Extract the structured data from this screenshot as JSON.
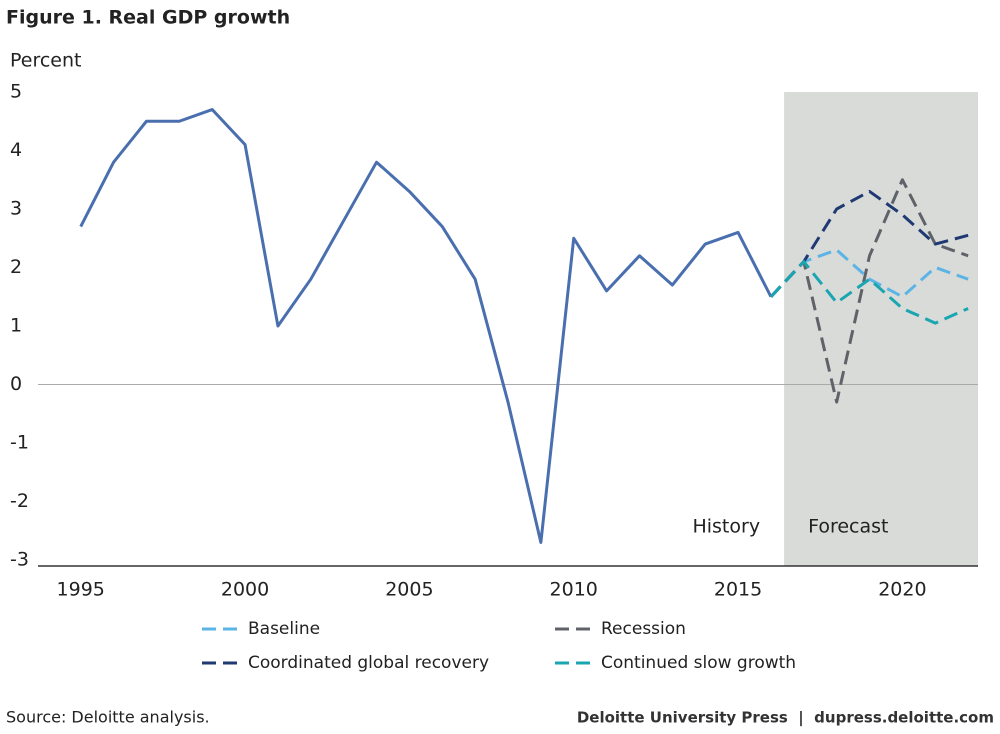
{
  "chart_data": {
    "type": "line",
    "title": "Figure 1. Real GDP growth",
    "y_label": "Percent",
    "source": "Source: Deloitte analysis.",
    "credit": "Deloitte University Press  |  dupress.deloitte.com",
    "annotations": [
      "History",
      "Forecast"
    ],
    "forecast_span": [
      2016.4,
      2022.3
    ],
    "xlim": [
      1993.7,
      2022.3
    ],
    "xticks": [
      1995,
      2000,
      2005,
      2010,
      2015,
      2020
    ],
    "ylim": [
      -3,
      5
    ],
    "yticks": [
      5,
      4,
      3,
      2,
      1,
      0,
      -1,
      -2,
      -3
    ],
    "series": [
      {
        "color": "#4a6fae",
        "dashed": false,
        "x": [
          1995,
          1996,
          1997,
          1998,
          1999,
          2000,
          2001,
          2002,
          2003,
          2004,
          2005,
          2006,
          2007,
          2008,
          2009,
          2010,
          2011,
          2012,
          2013,
          2014,
          2015,
          2016
        ],
        "values": [
          2.7,
          3.8,
          4.5,
          4.5,
          4.7,
          4.1,
          1.0,
          1.8,
          2.8,
          3.8,
          3.3,
          2.7,
          1.8,
          -0.3,
          -2.7,
          2.5,
          1.6,
          2.2,
          1.7,
          2.4,
          2.6,
          1.5
        ]
      },
      {
        "name": "Baseline",
        "color": "#5bb4e5",
        "dashed": true,
        "x": [
          2016,
          2017,
          2018,
          2019,
          2020,
          2021,
          2022
        ],
        "values": [
          1.5,
          2.1,
          2.3,
          1.8,
          1.5,
          2.0,
          1.8
        ]
      },
      {
        "name": "Recession",
        "color": "#5f6369",
        "dashed": true,
        "x": [
          2016,
          2017,
          2018,
          2019,
          2020,
          2021,
          2022
        ],
        "values": [
          1.5,
          2.1,
          -0.3,
          2.2,
          3.5,
          2.4,
          2.2
        ]
      },
      {
        "name": "Coordinated global recovery",
        "color": "#1f3a73",
        "dashed": true,
        "x": [
          2016,
          2017,
          2018,
          2019,
          2020,
          2021,
          2022
        ],
        "values": [
          1.5,
          2.1,
          3.0,
          3.3,
          2.9,
          2.4,
          2.55
        ]
      },
      {
        "name": "Continued slow growth",
        "color": "#1aa6b0",
        "dashed": true,
        "x": [
          2016,
          2017,
          2018,
          2019,
          2020,
          2021,
          2022
        ],
        "values": [
          1.5,
          2.1,
          1.4,
          1.8,
          1.3,
          1.05,
          1.3
        ]
      }
    ]
  }
}
